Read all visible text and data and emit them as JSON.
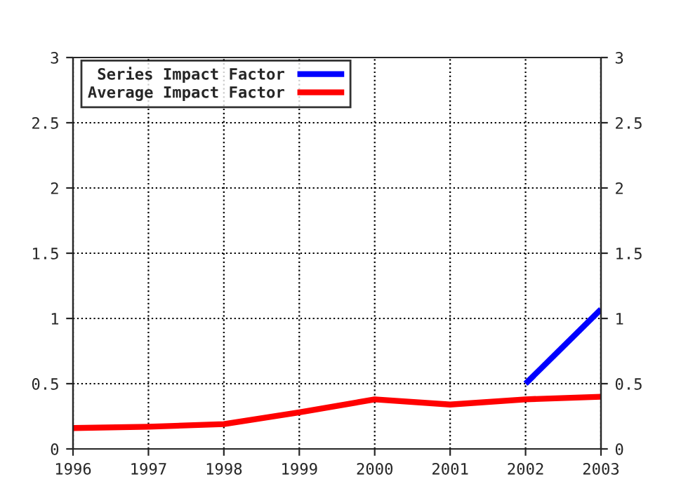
{
  "chart_data": {
    "type": "line",
    "x": [
      1996,
      1997,
      1998,
      1999,
      2000,
      2001,
      2002,
      2003
    ],
    "series": [
      {
        "name": "Series Impact Factor",
        "color": "#0000ff",
        "x": [
          2002,
          2003
        ],
        "values": [
          0.5,
          1.07
        ]
      },
      {
        "name": "Average Impact Factor",
        "color": "#ff0000",
        "values": [
          0.16,
          0.17,
          0.19,
          0.28,
          0.38,
          0.34,
          0.38,
          0.4
        ]
      }
    ],
    "xlim": [
      1996,
      2003
    ],
    "xticks": [
      1996,
      1997,
      1998,
      1999,
      2000,
      2001,
      2002,
      2003
    ],
    "ylim": [
      0,
      3
    ],
    "yticks": [
      0,
      0.5,
      1,
      1.5,
      2,
      2.5,
      3
    ],
    "y2lim": [
      0,
      3
    ],
    "y2ticks": [
      0,
      0.5,
      1,
      1.5,
      2,
      2.5,
      3
    ],
    "grid": true,
    "legend": "top left",
    "line_style": "solid",
    "marker": "none"
  }
}
